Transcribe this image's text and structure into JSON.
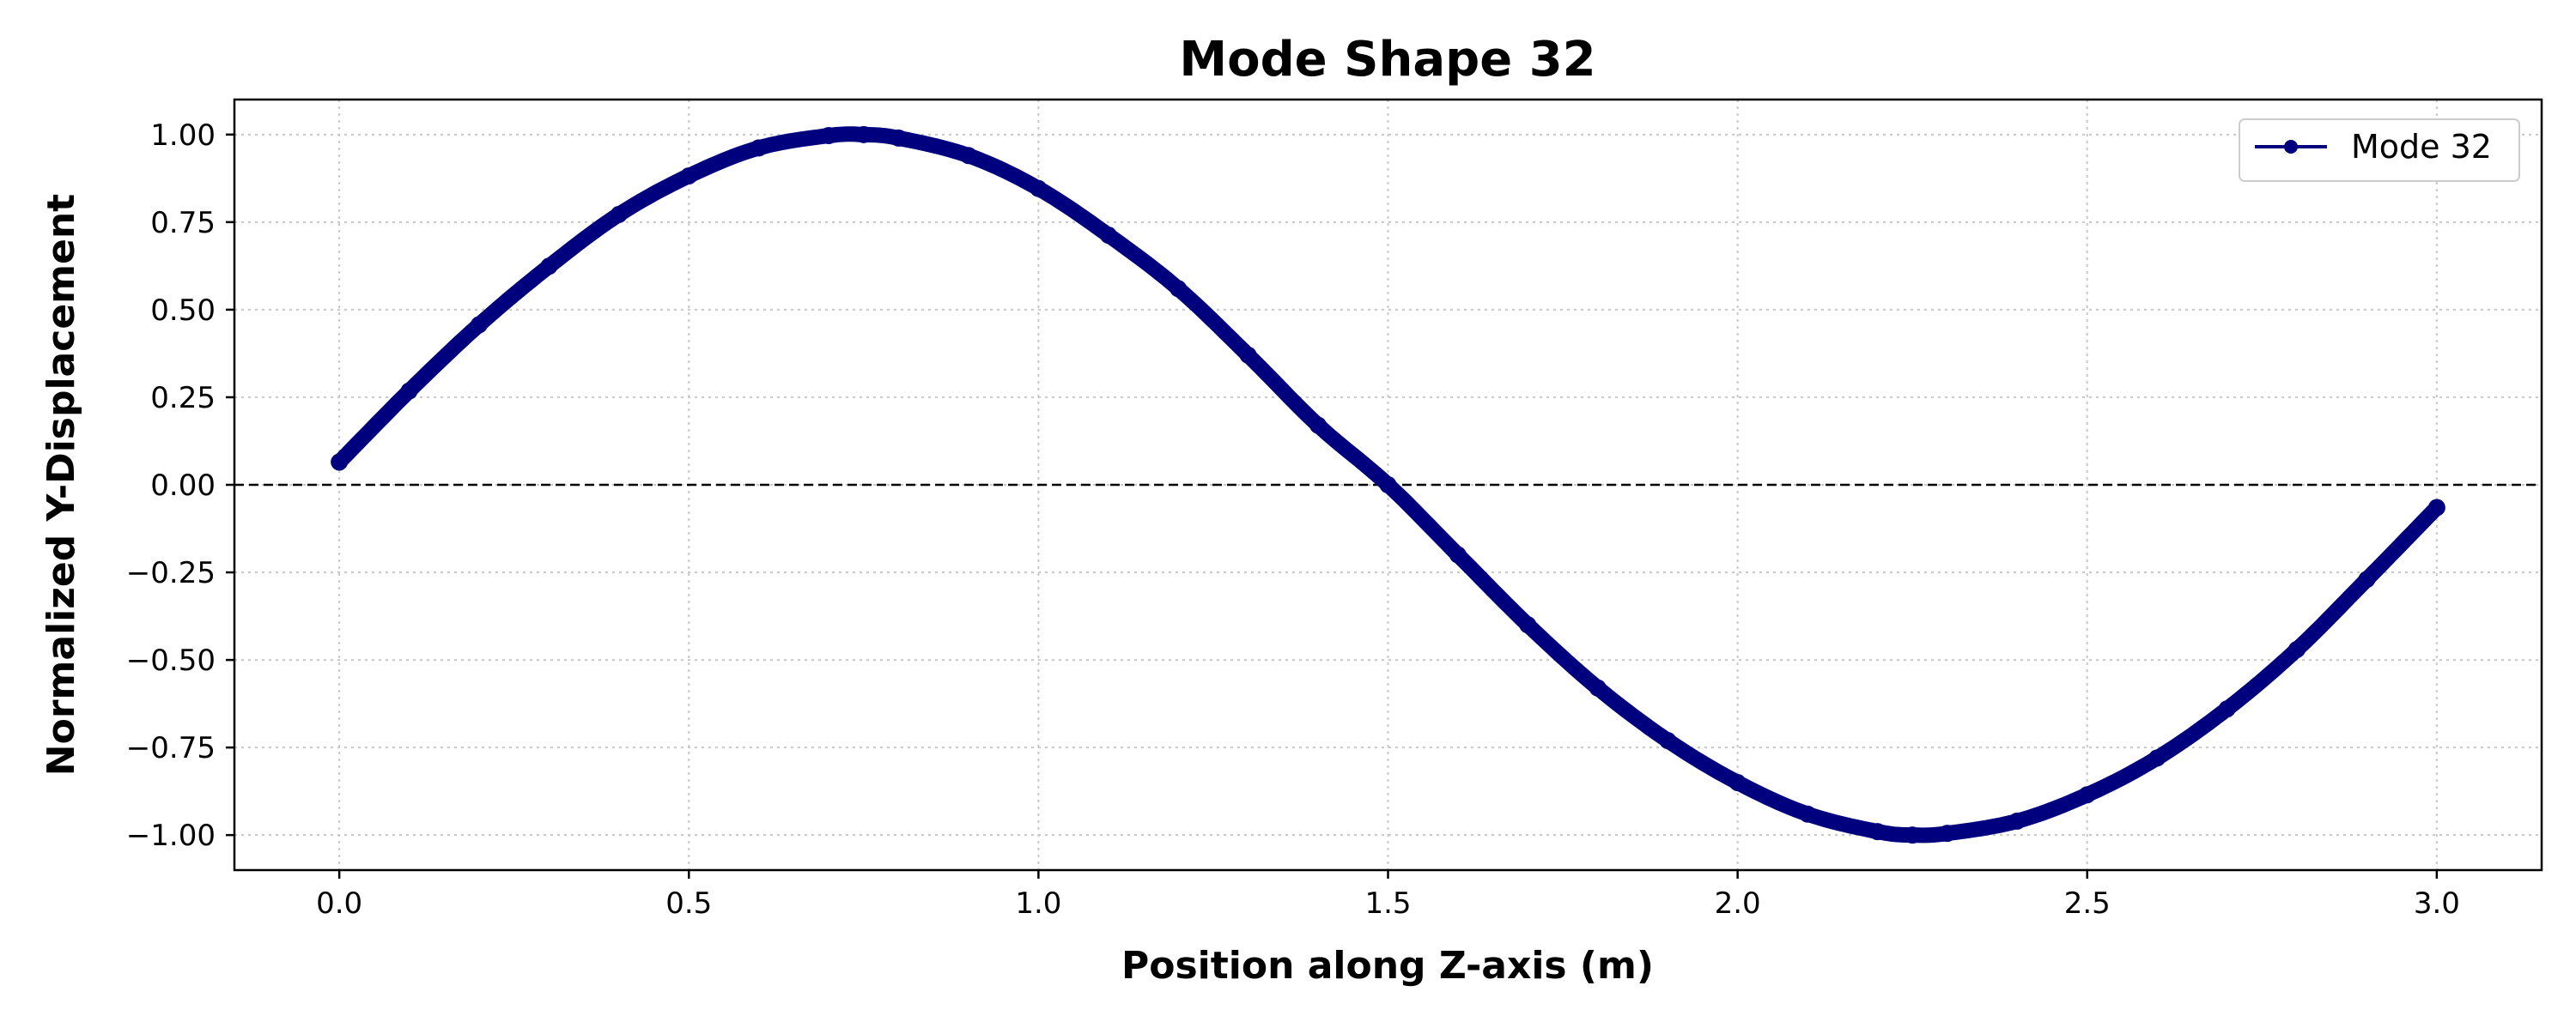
{
  "chart_data": {
    "type": "line",
    "title": "Mode Shape 32",
    "xlabel": "Position along Z-axis (m)",
    "ylabel": "Normalized Y-Displacement",
    "xlim": [
      -0.15,
      3.15
    ],
    "ylim": [
      -1.1,
      1.1
    ],
    "xticks": [
      0.0,
      0.5,
      1.0,
      1.5,
      2.0,
      2.5,
      3.0
    ],
    "xtick_labels": [
      "0.0",
      "0.5",
      "1.0",
      "1.5",
      "2.0",
      "2.5",
      "3.0"
    ],
    "yticks": [
      1.0,
      0.75,
      0.5,
      0.25,
      0.0,
      -0.25,
      -0.5,
      -0.75,
      -1.0
    ],
    "ytick_labels": [
      "1.00",
      "0.75",
      "0.50",
      "0.25",
      "0.00",
      "−0.25",
      "−0.50",
      "−0.75",
      "−1.00"
    ],
    "grid": true,
    "grid_style": "dotted",
    "zero_reference_line": true,
    "legend_position": "top-right",
    "series": [
      {
        "name": "Mode 32",
        "color": "#00007f",
        "marker": "circle",
        "x": [
          0.0,
          0.1,
          0.2,
          0.3,
          0.4,
          0.5,
          0.6,
          0.7,
          0.75,
          0.8,
          0.9,
          1.0,
          1.1,
          1.2,
          1.3,
          1.4,
          1.5,
          1.6,
          1.7,
          1.8,
          1.9,
          2.0,
          2.1,
          2.2,
          2.25,
          2.3,
          2.4,
          2.5,
          2.6,
          2.7,
          2.8,
          2.9,
          3.0
        ],
        "y": [
          0.065,
          0.268,
          0.457,
          0.624,
          0.772,
          0.882,
          0.962,
          0.997,
          1.0,
          0.99,
          0.94,
          0.846,
          0.713,
          0.56,
          0.37,
          0.17,
          0.0,
          -0.2,
          -0.4,
          -0.58,
          -0.73,
          -0.85,
          -0.94,
          -0.99,
          -1.0,
          -0.995,
          -0.96,
          -0.885,
          -0.78,
          -0.64,
          -0.47,
          -0.27,
          -0.065
        ]
      }
    ]
  }
}
